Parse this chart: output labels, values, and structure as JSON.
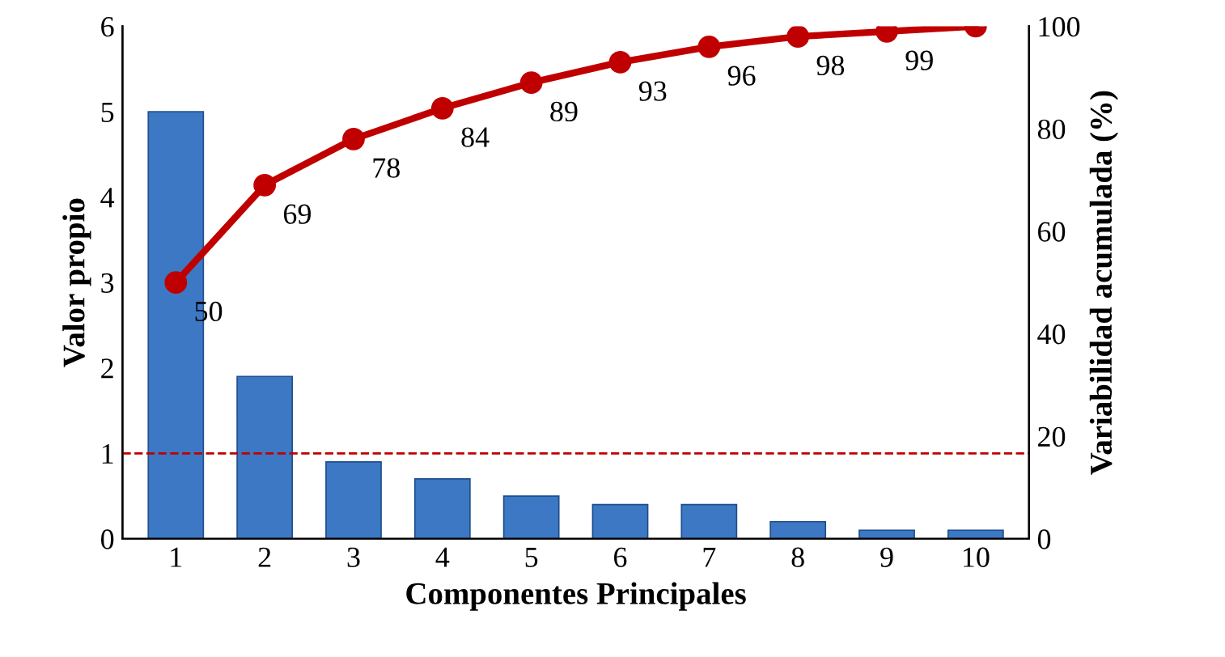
{
  "chart_data": {
    "type": "bar",
    "xlabel": "Componentes Principales",
    "ylabel": "Valor propio",
    "y2label": "Variabilidad acumulada (%)",
    "categories": [
      "1",
      "2",
      "3",
      "4",
      "5",
      "6",
      "7",
      "8",
      "9",
      "10"
    ],
    "series": [
      {
        "color": "#3c78c3",
        "values": [
          5.0,
          1.9,
          0.9,
          0.7,
          0.5,
          0.4,
          0.4,
          0.2,
          0.1,
          0.1
        ]
      },
      {
        "type": "line",
        "axis": "y2",
        "color": "#c00000",
        "marker": "circle",
        "data_labels": true,
        "values": [
          50,
          69,
          78,
          84,
          89,
          93,
          96,
          98,
          99,
          100
        ],
        "value_labels": [
          "50",
          "69",
          "78",
          "84",
          "89",
          "93",
          "96",
          "98",
          "99",
          null
        ]
      }
    ],
    "ylim": [
      0,
      6
    ],
    "yticks": [
      0,
      1,
      2,
      3,
      4,
      5,
      6
    ],
    "y2lim": [
      0,
      100
    ],
    "y2ticks": [
      0,
      20,
      40,
      60,
      80,
      100
    ],
    "ref_lines": [
      {
        "axis": "y",
        "value": 1,
        "color": "#c00000",
        "line_style": "dashed"
      }
    ],
    "grid": false,
    "legend": false
  }
}
